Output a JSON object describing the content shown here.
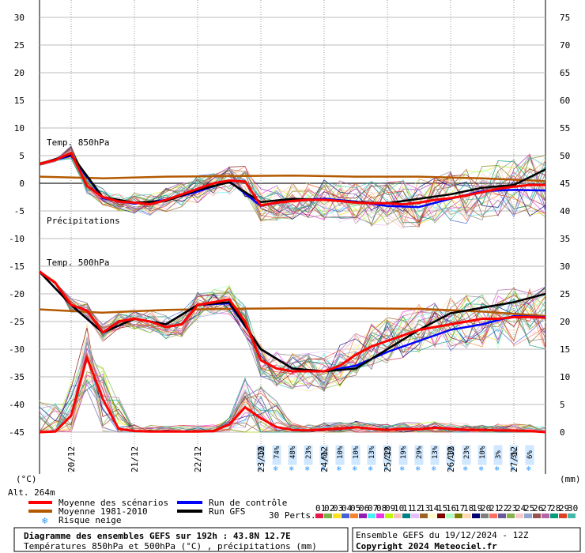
{
  "chart_data": {
    "type": "line",
    "title": "Diagramme des ensembles GEFS sur 192h : 43.8N 12.7E",
    "subtitle": "Températures 850hPa et 500hPa (°C) , précipitations (mm)",
    "run_info": "Ensemble GEFS du 19/12/2024 - 12Z",
    "copyright": "Copyright 2024 Meteociel.fr",
    "left_unit": "(°C)",
    "right_unit": "(mm)",
    "altitude": "Alt. 264m",
    "y_left": {
      "ticks": [
        30,
        25,
        20,
        15,
        10,
        5,
        0,
        -5,
        -10,
        -15,
        -20,
        -25,
        -30,
        -35,
        -40,
        -45
      ],
      "range": [
        -45,
        30
      ]
    },
    "y_right": {
      "ticks": [
        75,
        70,
        65,
        60,
        55,
        50,
        45,
        40,
        35,
        30,
        25,
        20,
        15,
        10,
        5,
        0
      ],
      "range": [
        0,
        75
      ]
    },
    "x_labels": [
      "20/12",
      "21/12",
      "22/12",
      "23/12",
      "24/12",
      "25/12",
      "26/12",
      "27/12"
    ],
    "x_range_hours": [
      0,
      192
    ],
    "panel_labels": {
      "t850": "Temp. 850hPa",
      "precip": "Précipitations",
      "t500": "Temp. 500hPa"
    },
    "snow_risk": {
      "hours": [
        84,
        90,
        96,
        102,
        108,
        114,
        120,
        126,
        132,
        138,
        144,
        150,
        156,
        162,
        168,
        174,
        180,
        186
      ],
      "labels": [
        "16%",
        "74%",
        "48%",
        "23%",
        "6%",
        "10%",
        "10%",
        "13%",
        "22%",
        "19%",
        "29%",
        "13%",
        "10%",
        "23%",
        "10%",
        "3%",
        "3%",
        "6%"
      ]
    },
    "series": [
      {
        "name": "Moyenne des scénarios",
        "color": "#ff0000",
        "group": "t850",
        "x": [
          0,
          6,
          12,
          18,
          24,
          30,
          36,
          42,
          48,
          54,
          60,
          66,
          72,
          78,
          84,
          90,
          96,
          102,
          108,
          114,
          120,
          126,
          132,
          138,
          144,
          150,
          156,
          162,
          168,
          174,
          180,
          186,
          192
        ],
        "y": [
          3.5,
          4.2,
          5.5,
          -0.5,
          -2.5,
          -3.3,
          -3.5,
          -3.8,
          -3.0,
          -2.0,
          -1.0,
          0.0,
          0.5,
          0.3,
          -4.0,
          -3.5,
          -3.2,
          -3.0,
          -3.0,
          -3.2,
          -3.5,
          -3.6,
          -3.6,
          -3.8,
          -3.5,
          -3.0,
          -2.7,
          -2.2,
          -1.6,
          -1.0,
          -0.6,
          -0.3,
          -0.3
        ]
      },
      {
        "name": "Moyenne des scénarios",
        "color": "#ff0000",
        "group": "t500",
        "x": [
          0,
          6,
          12,
          18,
          24,
          30,
          36,
          42,
          48,
          54,
          60,
          66,
          72,
          78,
          84,
          90,
          96,
          102,
          108,
          114,
          120,
          126,
          132,
          138,
          144,
          150,
          156,
          162,
          168,
          174,
          180,
          186,
          192
        ],
        "y": [
          -16,
          -18,
          -22,
          -23,
          -27,
          -25,
          -24.5,
          -25,
          -26,
          -25.5,
          -22,
          -21.5,
          -21,
          -25,
          -32,
          -33.5,
          -34,
          -34,
          -34,
          -33,
          -31,
          -29.5,
          -28.5,
          -27.5,
          -26.5,
          -26,
          -25.5,
          -25,
          -24.5,
          -24.5,
          -24.2,
          -24.2,
          -24.3
        ]
      },
      {
        "name": "Moyenne des scénarios",
        "color": "#ff0000",
        "group": "precip",
        "x": [
          0,
          6,
          12,
          18,
          24,
          30,
          36,
          42,
          48,
          54,
          60,
          66,
          72,
          78,
          84,
          90,
          96,
          102,
          108,
          114,
          120,
          126,
          132,
          138,
          144,
          150,
          156,
          162,
          168,
          174,
          180,
          186,
          192
        ],
        "y": [
          0,
          0.1,
          3,
          13.5,
          6,
          0.6,
          0.2,
          0.1,
          0.1,
          0.1,
          0.1,
          0.2,
          1.4,
          4.5,
          2.5,
          0.9,
          0.4,
          0.3,
          0.5,
          0.6,
          0.9,
          0.6,
          0.4,
          0.6,
          0.5,
          0.8,
          0.6,
          0.4,
          0.4,
          0.3,
          0.3,
          0.2,
          0
        ]
      },
      {
        "name": "Moyenne 1981-2010",
        "color": "#b35900",
        "group": "t850",
        "x": [
          0,
          24,
          48,
          72,
          96,
          120,
          144,
          168,
          192
        ],
        "y": [
          1.2,
          0.9,
          1.2,
          1.3,
          1.4,
          1.2,
          1.2,
          0.9,
          0.4
        ]
      },
      {
        "name": "Moyenne 1981-2010",
        "color": "#b35900",
        "group": "t500",
        "x": [
          0,
          24,
          48,
          72,
          96,
          120,
          144,
          168,
          192
        ],
        "y": [
          -22.8,
          -23.4,
          -22.9,
          -22.7,
          -22.6,
          -22.6,
          -22.7,
          -23.2,
          -24
        ]
      },
      {
        "name": "Run de contrôle",
        "color": "#0000ff",
        "group": "t850",
        "x": [
          0,
          12,
          24,
          36,
          48,
          60,
          72,
          84,
          96,
          108,
          120,
          132,
          144,
          156,
          168,
          180,
          192
        ],
        "y": [
          3.5,
          5,
          -2.7,
          -3.7,
          -3.0,
          -1.5,
          0.4,
          -4.1,
          -3,
          -2.8,
          -3.3,
          -4.1,
          -4.3,
          -2.8,
          -1.4,
          -1.2,
          -1.3
        ]
      },
      {
        "name": "Run de contrôle",
        "color": "#0000ff",
        "group": "t500",
        "x": [
          0,
          12,
          24,
          36,
          48,
          60,
          72,
          84,
          96,
          108,
          120,
          132,
          144,
          156,
          168,
          180,
          192
        ],
        "y": [
          -16,
          -22,
          -27,
          -24.5,
          -25.5,
          -22,
          -21.7,
          -30,
          -33.5,
          -34,
          -33,
          -30.5,
          -28.5,
          -26.5,
          -25.5,
          -24,
          -24.2
        ]
      },
      {
        "name": "Run GFS",
        "color": "#000000",
        "group": "t850",
        "x": [
          0,
          12,
          24,
          36,
          48,
          60,
          72,
          84,
          96,
          108,
          120,
          132,
          144,
          156,
          168,
          180,
          192
        ],
        "y": [
          3.5,
          5.2,
          -2.5,
          -3.5,
          -3.2,
          -1.2,
          0.2,
          -3.4,
          -2.8,
          -3,
          -3.4,
          -3.6,
          -2.8,
          -2.0,
          -0.8,
          -0.3,
          2.5
        ]
      },
      {
        "name": "Run GFS",
        "color": "#000000",
        "group": "t500",
        "x": [
          0,
          12,
          24,
          36,
          48,
          60,
          72,
          84,
          96,
          108,
          120,
          132,
          144,
          156,
          168,
          180,
          192
        ],
        "y": [
          -16,
          -22,
          -27,
          -24.5,
          -25.5,
          -22,
          -21.5,
          -30,
          -33.5,
          -34,
          -33.5,
          -30,
          -26.5,
          -23.5,
          -22.5,
          -21.5,
          -20
        ]
      }
    ],
    "legend": [
      {
        "label": "Moyenne des scénarios",
        "color": "#ff0000"
      },
      {
        "label": "Moyenne 1981-2010",
        "color": "#b35900"
      },
      {
        "label": "Risque neige",
        "color": "#3399ff"
      },
      {
        "label": "Run de contrôle",
        "color": "#0000ff"
      },
      {
        "label": "Run GFS",
        "color": "#000000"
      }
    ],
    "perturbations": {
      "title": "30 Perts.",
      "labels": [
        "01",
        "02",
        "03",
        "04",
        "05",
        "06",
        "07",
        "08",
        "09",
        "10",
        "11",
        "12",
        "13",
        "14",
        "15",
        "16",
        "17",
        "18",
        "19",
        "20",
        "21",
        "22",
        "23",
        "24",
        "25",
        "26",
        "27",
        "28",
        "29",
        "30"
      ],
      "colors": [
        "#e6194b",
        "#7cb342",
        "#ffe119",
        "#4363d8",
        "#f58231",
        "#911eb4",
        "#46f0f0",
        "#f032e6",
        "#bcf60c",
        "#fabebe",
        "#008080",
        "#e6beff",
        "#9a6324",
        "#fffac8",
        "#800000",
        "#aaffc3",
        "#808000",
        "#ffd8b1",
        "#000075",
        "#808080",
        "#ff6f61",
        "#6b5b95",
        "#88b04b",
        "#f7cac9",
        "#92a8d1",
        "#955251",
        "#b565a7",
        "#009b77",
        "#dd4124",
        "#45b8ac"
      ]
    }
  }
}
